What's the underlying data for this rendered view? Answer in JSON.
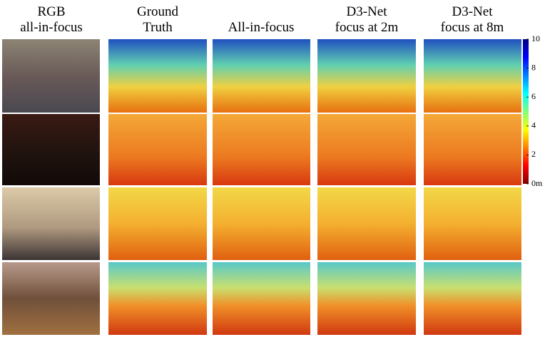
{
  "columns": [
    {
      "lines": [
        "RGB",
        "all-in-focus"
      ]
    },
    {
      "lines": [
        "Ground",
        "Truth"
      ]
    },
    {
      "lines": [
        "All-in-focus"
      ]
    },
    {
      "lines": [
        "D3-Net",
        "focus at 2m"
      ]
    },
    {
      "lines": [
        "D3-Net",
        "focus at 8m"
      ]
    }
  ],
  "colorbar": {
    "lim": [
      0,
      10
    ],
    "ticks": [
      10,
      8,
      6,
      4,
      2,
      {
        "value": 0,
        "label": "0m"
      }
    ]
  }
}
